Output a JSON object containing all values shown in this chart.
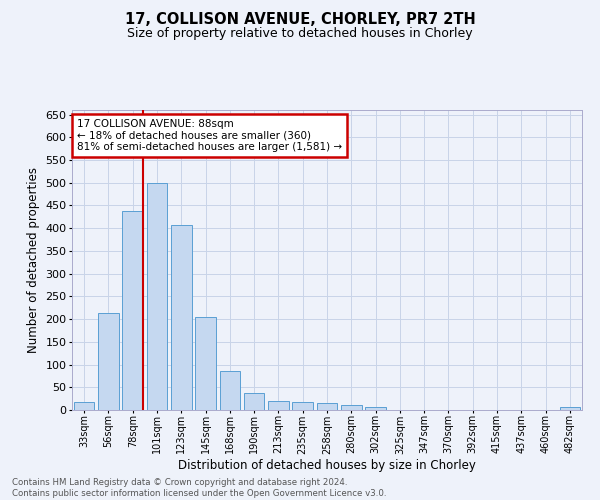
{
  "title1": "17, COLLISON AVENUE, CHORLEY, PR7 2TH",
  "title2": "Size of property relative to detached houses in Chorley",
  "xlabel": "Distribution of detached houses by size in Chorley",
  "ylabel": "Number of detached properties",
  "categories": [
    "33sqm",
    "56sqm",
    "78sqm",
    "101sqm",
    "123sqm",
    "145sqm",
    "168sqm",
    "190sqm",
    "213sqm",
    "235sqm",
    "258sqm",
    "280sqm",
    "302sqm",
    "325sqm",
    "347sqm",
    "370sqm",
    "392sqm",
    "415sqm",
    "437sqm",
    "460sqm",
    "482sqm"
  ],
  "values": [
    18,
    213,
    437,
    500,
    407,
    205,
    85,
    38,
    20,
    18,
    15,
    11,
    6,
    0,
    0,
    0,
    0,
    0,
    0,
    0,
    6
  ],
  "bar_color": "#c5d8f0",
  "bar_edge_color": "#5a9fd4",
  "vline_color": "#cc0000",
  "vline_pos": 2.43,
  "annotation_box_text": "17 COLLISON AVENUE: 88sqm\n← 18% of detached houses are smaller (360)\n81% of semi-detached houses are larger (1,581) →",
  "annotation_box_color": "#cc0000",
  "ylim": [
    0,
    660
  ],
  "yticks": [
    0,
    50,
    100,
    150,
    200,
    250,
    300,
    350,
    400,
    450,
    500,
    550,
    600,
    650
  ],
  "footer_text": "Contains HM Land Registry data © Crown copyright and database right 2024.\nContains public sector information licensed under the Open Government Licence v3.0.",
  "bg_color": "#eef2fa",
  "grid_color": "#c8d4e8"
}
